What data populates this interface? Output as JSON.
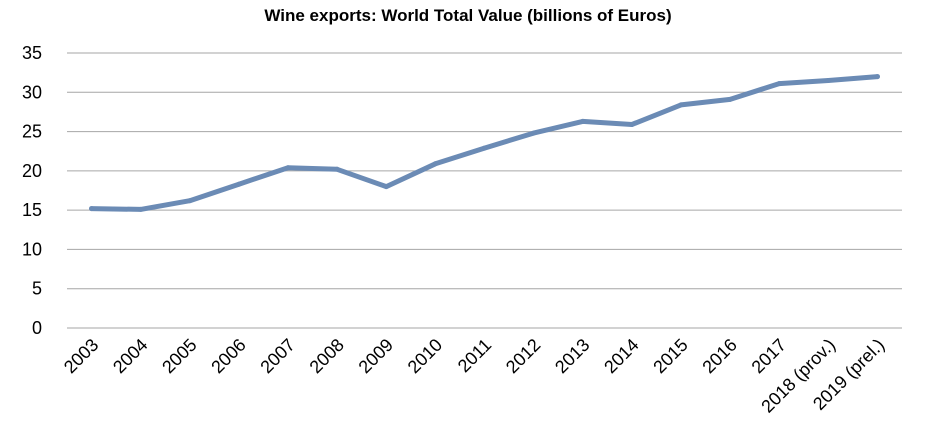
{
  "chart_data": {
    "type": "line",
    "title": "Wine exports: World Total Value (billions of Euros)",
    "xlabel": "",
    "ylabel": "",
    "categories": [
      "2003",
      "2004",
      "2005",
      "2006",
      "2007",
      "2008",
      "2009",
      "2010",
      "2011",
      "2012",
      "2013",
      "2014",
      "2015",
      "2016",
      "2017",
      "2018 (prov.)",
      "2019 (prel.)"
    ],
    "series": [
      {
        "values": [
          15.2,
          15.1,
          16.2,
          18.3,
          20.4,
          20.2,
          18.0,
          20.9,
          22.9,
          24.8,
          26.3,
          25.9,
          28.4,
          29.1,
          31.1,
          31.5,
          32.0
        ]
      }
    ],
    "ylim": [
      0,
      35
    ],
    "yticks": [
      "0",
      "5",
      "10",
      "15",
      "20",
      "25",
      "30",
      "35"
    ],
    "ytick_values": [
      0,
      5,
      10,
      15,
      20,
      25,
      30,
      35
    ],
    "grid": true,
    "legend": "none",
    "line_color": "#6b8bb5",
    "grid_color": "#a6a6a6"
  }
}
